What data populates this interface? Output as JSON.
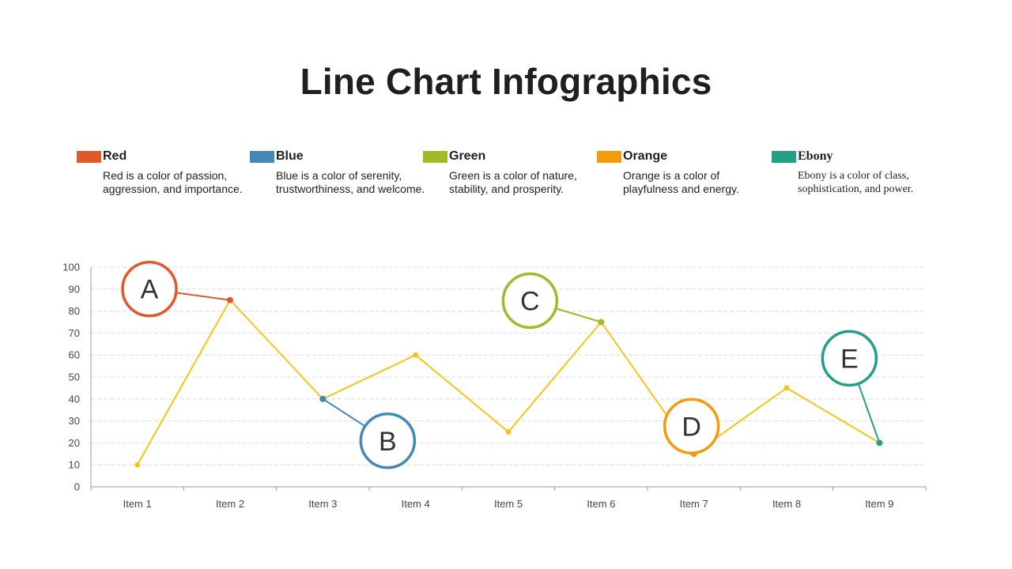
{
  "title": "Line Chart Infographics",
  "legend": [
    {
      "name": "Red",
      "color": "#e2572b",
      "desc": "Red is a color of passion, aggression, and importance."
    },
    {
      "name": "Blue",
      "color": "#4389b5",
      "desc": "Blue is a color of serenity, trustworthiness, and welcome."
    },
    {
      "name": "Green",
      "color": "#a2ba2a",
      "desc": "Green is a color of nature, stability, and prosperity."
    },
    {
      "name": "Orange",
      "color": "#f39b0c",
      "desc": "Orange is a color of playfulness and energy."
    },
    {
      "name": "Ebony",
      "color": "#22a085",
      "desc": "Ebony is a color of class, sophistication, and power."
    }
  ],
  "chart_data": {
    "type": "line",
    "categories": [
      "Item 1",
      "Item 2",
      "Item 3",
      "Item 4",
      "Item 5",
      "Item 6",
      "Item 7",
      "Item 8",
      "Item 9"
    ],
    "series": [
      {
        "values": [
          10,
          85,
          40,
          60,
          25,
          75,
          15,
          45,
          20
        ],
        "color": "#f5c518"
      }
    ],
    "ylim": [
      0,
      100
    ],
    "yticks": [
      0,
      10,
      20,
      30,
      40,
      50,
      60,
      70,
      80,
      90,
      100
    ],
    "grid": true,
    "callouts": [
      {
        "letter": "A",
        "item_index": 1,
        "color": "#e2572b"
      },
      {
        "letter": "B",
        "item_index": 2,
        "color": "#4389b5"
      },
      {
        "letter": "C",
        "item_index": 5,
        "color": "#a2ba2a"
      },
      {
        "letter": "D",
        "item_index": 6,
        "color": "#f39b0c"
      },
      {
        "letter": "E",
        "item_index": 8,
        "color": "#22a085"
      }
    ]
  }
}
